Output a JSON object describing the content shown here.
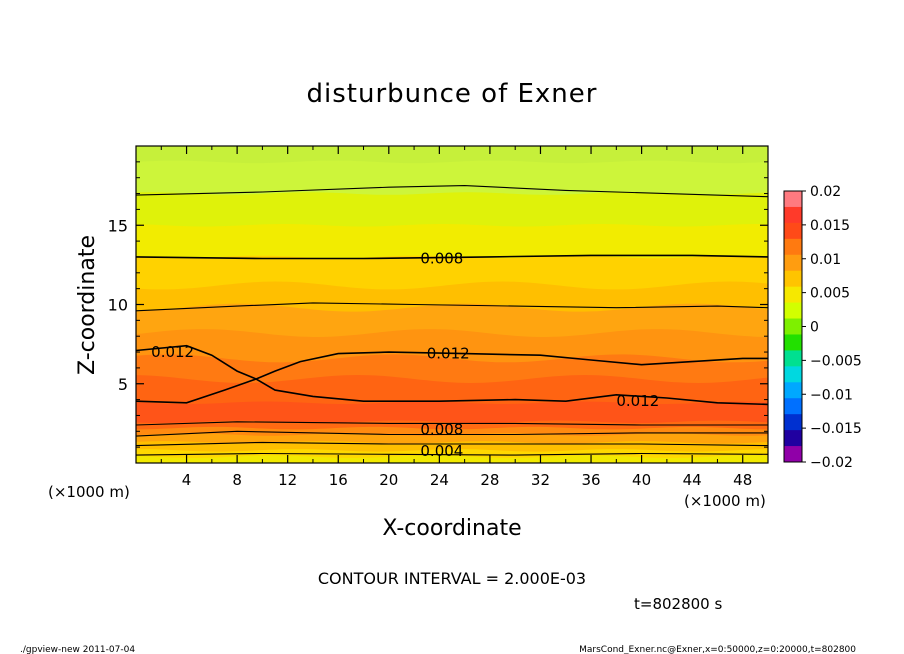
{
  "chart_data": {
    "type": "contour",
    "title": "disturbunce of Exner",
    "xlabel": "X-coordinate",
    "ylabel": "Z-coordinate",
    "x_unit": "(×1000 m)",
    "y_unit": "(×1000 m)",
    "xlim": [
      0,
      50
    ],
    "ylim": [
      0,
      20
    ],
    "x_ticks": [
      "4",
      "8",
      "12",
      "16",
      "20",
      "24",
      "28",
      "32",
      "36",
      "40",
      "44",
      "48"
    ],
    "y_ticks": [
      "5",
      "10",
      "15"
    ],
    "contour_interval_label": "CONTOUR INTERVAL = 2.000E-03",
    "contour_labels": [
      "0.012",
      "0.012",
      "0.012",
      "0.008",
      "0.008",
      "0.004"
    ],
    "colorbar": {
      "labels": [
        "0.02",
        "0.015",
        "0.01",
        "0.005",
        "0",
        "−0.005",
        "−0.01",
        "−0.015",
        "−0.02"
      ],
      "colors": [
        "#ff7a80",
        "#ff3a2a",
        "#ff4a18",
        "#ff7a10",
        "#ff9d10",
        "#ffc400",
        "#f6e800",
        "#d2ff00",
        "#7ef000",
        "#22e000",
        "#00e090",
        "#00d8e0",
        "#00a8ff",
        "#0070ff",
        "#0030d0",
        "#2000a0",
        "#9000a8"
      ]
    },
    "bands": [
      {
        "z": 19.0,
        "color": "#cdf53a"
      },
      {
        "z": 17.0,
        "color": "#dff20a"
      },
      {
        "z": 15.0,
        "color": "#f2ec00"
      },
      {
        "z": 13.0,
        "color": "#ffd200"
      },
      {
        "z": 11.2,
        "color": "#ffbf00"
      },
      {
        "z": 9.8,
        "color": "#ffa510"
      },
      {
        "z": 8.2,
        "color": "#ff9410"
      },
      {
        "z": 6.6,
        "color": "#ff7a12"
      },
      {
        "z": 5.3,
        "color": "#ff6412"
      },
      {
        "z": 3.8,
        "color": "#ff5418"
      },
      {
        "z": 2.6,
        "color": "#ff6a12"
      },
      {
        "z": 2.2,
        "color": "#ff8a10"
      },
      {
        "z": 1.8,
        "color": "#ffa40c"
      },
      {
        "z": 1.3,
        "color": "#ffbf00"
      },
      {
        "z": 0.8,
        "color": "#ffd800"
      },
      {
        "z": 0.4,
        "color": "#f2ea00"
      },
      {
        "z": 0.0,
        "color": "#d8f000"
      }
    ],
    "time_label": "t=802800 s",
    "footer_left": "./gpview-new   2011-07-04",
    "footer_right": "MarsCond_Exner.nc@Exner,x=0:50000,z=0:20000,t=802800"
  }
}
